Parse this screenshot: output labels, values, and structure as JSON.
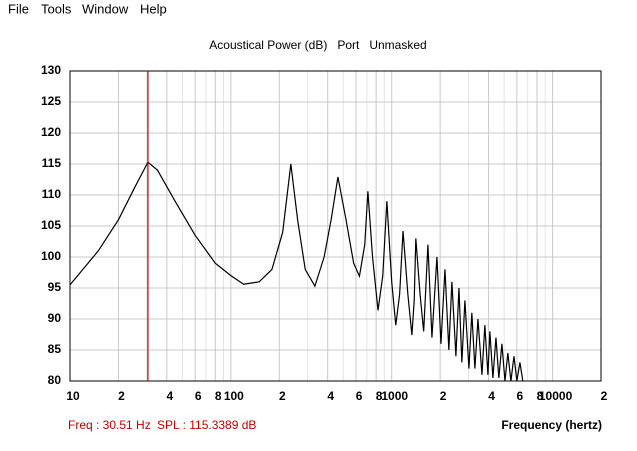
{
  "menu": [
    "File",
    "Tools",
    "Window",
    "Help"
  ],
  "chart_data": {
    "type": "line",
    "title": "Acoustical Power (dB)   Port   Unmasked",
    "x_label": "Frequency (hertz)",
    "log_x": true,
    "grid": true,
    "color": "#000000",
    "marker_color": "#c00000",
    "xlim": [
      10,
      20000
    ],
    "ylim": [
      80,
      130
    ],
    "xticks": [
      10,
      {
        "value": 20,
        "label": "2"
      },
      {
        "value": 40,
        "label": "4"
      },
      {
        "value": 60,
        "label": "6"
      },
      {
        "value": 80,
        "label": "8"
      },
      100,
      {
        "value": 200,
        "label": "2"
      },
      {
        "value": 400,
        "label": "4"
      },
      {
        "value": 600,
        "label": "6"
      },
      {
        "value": 800,
        "label": "8"
      },
      1000,
      {
        "value": 2000,
        "label": "2"
      },
      {
        "value": 4000,
        "label": "4"
      },
      {
        "value": 6000,
        "label": "6"
      },
      {
        "value": 8000,
        "label": "8"
      },
      10000,
      {
        "value": 20000,
        "label": "2"
      }
    ],
    "xminor": [
      30,
      50,
      70,
      90,
      300,
      500,
      700,
      900,
      3000,
      5000,
      7000,
      9000
    ],
    "yticks": [
      80,
      85,
      90,
      95,
      100,
      105,
      110,
      115,
      120,
      125,
      130
    ],
    "marker": 30.51,
    "x": [
      10,
      15,
      20,
      25,
      30.51,
      35,
      45,
      60,
      80,
      100,
      120,
      150,
      180,
      210,
      236,
      260,
      290,
      333,
      380,
      420,
      463,
      520,
      580,
      630,
      680,
      711,
      760,
      822,
      880,
      933,
      1000,
      1060,
      1120,
      1176,
      1260,
      1335,
      1380,
      1412,
      1500,
      1580,
      1679,
      1778,
      1910,
      2023,
      2143,
      2265,
      2366,
      2506,
      2618,
      2729,
      2851,
      3020,
      3148,
      3289,
      3436,
      3639,
      3793,
      3963,
      4074,
      4256,
      4446,
      4634,
      4842,
      5058,
      5272,
      5508,
      5754,
      5998,
      6266,
      6531
    ],
    "values": [
      95.5,
      101,
      106,
      111,
      115.3,
      114,
      109,
      103.5,
      99,
      97,
      95.6,
      96,
      98,
      104,
      115,
      106,
      98,
      95.3,
      100,
      106,
      112.9,
      106,
      99,
      96.9,
      102,
      110.6,
      100,
      91.4,
      97,
      109,
      96,
      89,
      94,
      104.2,
      94,
      87.4,
      93,
      103,
      94,
      88,
      102,
      87,
      100,
      86,
      98,
      85,
      96,
      84,
      95,
      83,
      93,
      82,
      91,
      82,
      90,
      81,
      89,
      81,
      88,
      80.5,
      87,
      80.5,
      86,
      80,
      84.5,
      80,
      84,
      80,
      83,
      80
    ]
  },
  "status": {
    "freq": "Freq : 30.51 Hz",
    "spl": "SPL : 115.3389 dB"
  }
}
